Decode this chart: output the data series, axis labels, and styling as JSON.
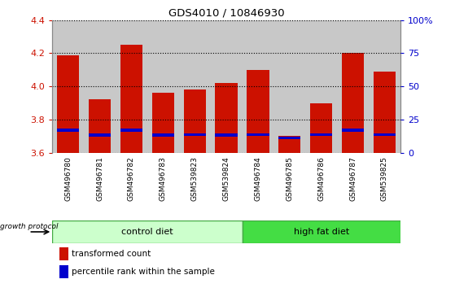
{
  "title": "GDS4010 / 10846930",
  "samples": [
    "GSM496780",
    "GSM496781",
    "GSM496782",
    "GSM496783",
    "GSM539823",
    "GSM539824",
    "GSM496784",
    "GSM496785",
    "GSM496786",
    "GSM496787",
    "GSM539825"
  ],
  "red_values": [
    4.19,
    3.92,
    4.25,
    3.96,
    3.98,
    4.02,
    4.1,
    3.7,
    3.9,
    4.2,
    4.09
  ],
  "blue_bottoms": [
    3.724,
    3.696,
    3.724,
    3.696,
    3.7,
    3.696,
    3.7,
    3.681,
    3.7,
    3.724,
    3.7
  ],
  "blue_heights": [
    0.022,
    0.018,
    0.022,
    0.018,
    0.018,
    0.018,
    0.018,
    0.016,
    0.018,
    0.022,
    0.018
  ],
  "ylim_left": [
    3.6,
    4.4
  ],
  "ylim_right": [
    0,
    100
  ],
  "yticks_left": [
    3.6,
    3.8,
    4.0,
    4.2,
    4.4
  ],
  "yticks_right": [
    0,
    25,
    50,
    75,
    100
  ],
  "ytick_labels_right": [
    "0",
    "25",
    "50",
    "75",
    "100%"
  ],
  "n_control": 6,
  "n_hfd": 5,
  "group_labels": [
    "control diet",
    "high fat diet"
  ],
  "ctrl_facecolor": "#ccffcc",
  "hfd_facecolor": "#44dd44",
  "group_edge_color": "#44aa44",
  "bar_color_red": "#cc1100",
  "bar_color_blue": "#0000cc",
  "bar_width": 0.7,
  "legend_labels": [
    "transformed count",
    "percentile rank within the sample"
  ],
  "protocol_label": "growth protocol",
  "tick_color_left": "#cc1100",
  "tick_color_right": "#0000cc",
  "col_bg_color": "#c8c8c8",
  "plot_bg_color": "#ffffff"
}
